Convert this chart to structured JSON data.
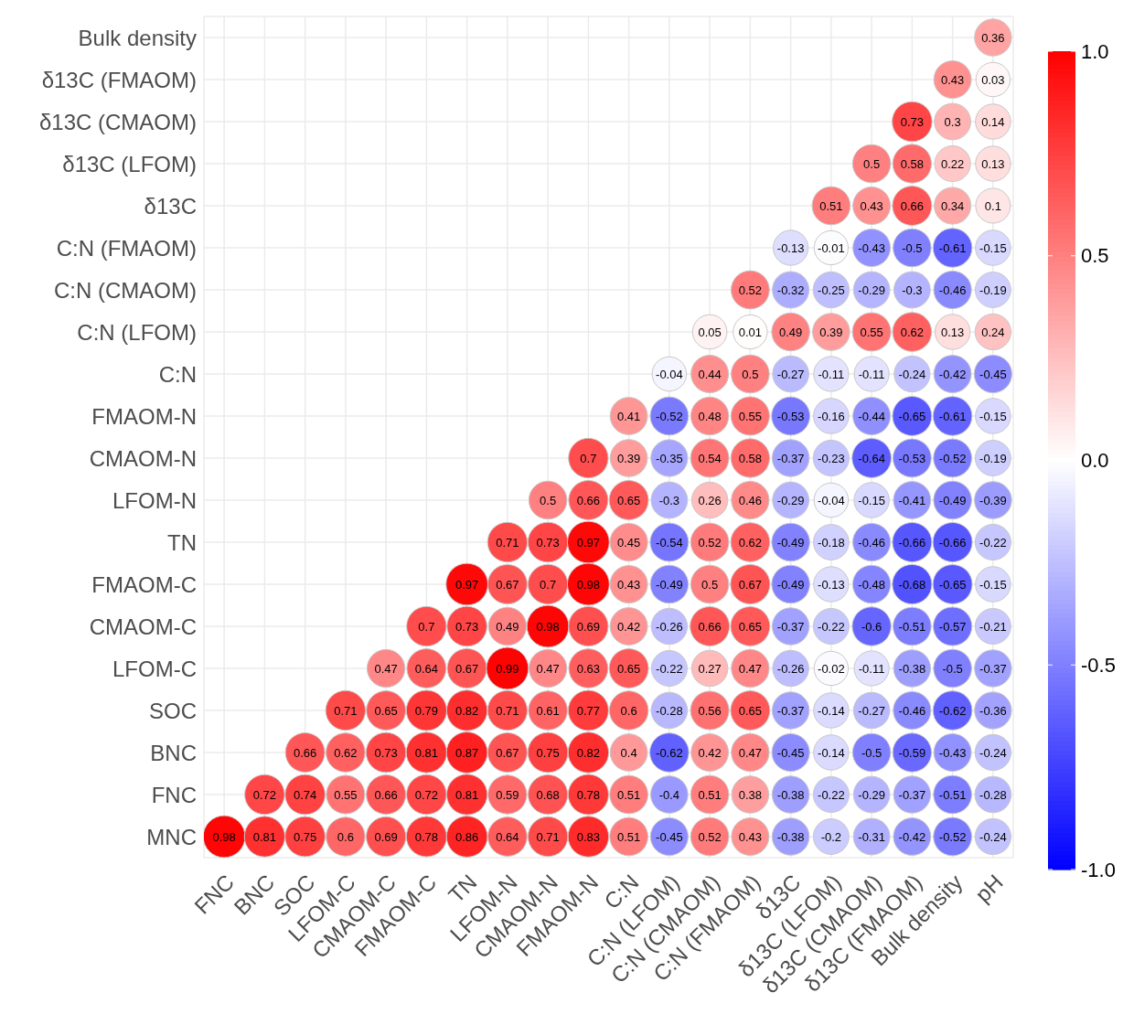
{
  "chart_data": {
    "type": "heatmap",
    "categories": [
      "FNC",
      "BNC",
      "SOC",
      "LFOM-C",
      "CMAOM-C",
      "FMAOM-C",
      "TN",
      "LFOM-N",
      "CMAOM-N",
      "FMAOM-N",
      "C:N",
      "C:N (LFOM)",
      "C:N (CMAOM)",
      "C:N (FMAOM)",
      "δ13C",
      "δ13C (LFOM)",
      "δ13C (CMAOM)",
      "δ13C (FMAOM)",
      "Bulk density",
      "pH"
    ],
    "y_categories": [
      "Bulk density",
      "δ13C (FMAOM)",
      "δ13C (CMAOM)",
      "δ13C (LFOM)",
      "δ13C",
      "C:N (FMAOM)",
      "C:N (CMAOM)",
      "C:N (LFOM)",
      "C:N",
      "FMAOM-N",
      "CMAOM-N",
      "LFOM-N",
      "TN",
      "FMAOM-C",
      "CMAOM-C",
      "LFOM-C",
      "SOC",
      "BNC",
      "FNC",
      "MNC"
    ],
    "cells": [
      [
        null,
        null,
        null,
        null,
        null,
        null,
        null,
        null,
        null,
        null,
        null,
        null,
        null,
        null,
        null,
        null,
        null,
        null,
        null,
        0.36
      ],
      [
        null,
        null,
        null,
        null,
        null,
        null,
        null,
        null,
        null,
        null,
        null,
        null,
        null,
        null,
        null,
        null,
        null,
        null,
        0.43,
        0.03
      ],
      [
        null,
        null,
        null,
        null,
        null,
        null,
        null,
        null,
        null,
        null,
        null,
        null,
        null,
        null,
        null,
        null,
        null,
        0.73,
        0.3,
        0.14
      ],
      [
        null,
        null,
        null,
        null,
        null,
        null,
        null,
        null,
        null,
        null,
        null,
        null,
        null,
        null,
        null,
        null,
        0.5,
        0.58,
        0.22,
        0.13
      ],
      [
        null,
        null,
        null,
        null,
        null,
        null,
        null,
        null,
        null,
        null,
        null,
        null,
        null,
        null,
        null,
        0.51,
        0.43,
        0.66,
        0.34,
        0.1
      ],
      [
        null,
        null,
        null,
        null,
        null,
        null,
        null,
        null,
        null,
        null,
        null,
        null,
        null,
        null,
        -0.13,
        -0.01,
        -0.43,
        -0.5,
        -0.61,
        -0.15
      ],
      [
        null,
        null,
        null,
        null,
        null,
        null,
        null,
        null,
        null,
        null,
        null,
        null,
        null,
        0.52,
        -0.32,
        -0.25,
        -0.29,
        -0.3,
        -0.46,
        -0.19
      ],
      [
        null,
        null,
        null,
        null,
        null,
        null,
        null,
        null,
        null,
        null,
        null,
        null,
        0.05,
        0.01,
        0.49,
        0.39,
        0.55,
        0.62,
        0.13,
        0.24
      ],
      [
        null,
        null,
        null,
        null,
        null,
        null,
        null,
        null,
        null,
        null,
        null,
        -0.04,
        0.44,
        0.5,
        -0.27,
        -0.11,
        -0.11,
        -0.24,
        -0.42,
        -0.45
      ],
      [
        null,
        null,
        null,
        null,
        null,
        null,
        null,
        null,
        null,
        null,
        0.41,
        -0.52,
        0.48,
        0.55,
        -0.53,
        -0.16,
        -0.44,
        -0.65,
        -0.61,
        -0.15
      ],
      [
        null,
        null,
        null,
        null,
        null,
        null,
        null,
        null,
        null,
        0.7,
        0.39,
        -0.35,
        0.54,
        0.58,
        -0.37,
        -0.23,
        -0.64,
        -0.53,
        -0.52,
        -0.19
      ],
      [
        null,
        null,
        null,
        null,
        null,
        null,
        null,
        null,
        0.5,
        0.66,
        0.65,
        -0.3,
        0.26,
        0.46,
        -0.29,
        -0.04,
        -0.15,
        -0.41,
        -0.49,
        -0.39
      ],
      [
        null,
        null,
        null,
        null,
        null,
        null,
        null,
        0.71,
        0.73,
        0.97,
        0.45,
        -0.54,
        0.52,
        0.62,
        -0.49,
        -0.18,
        -0.46,
        -0.66,
        -0.66,
        -0.22
      ],
      [
        null,
        null,
        null,
        null,
        null,
        null,
        0.97,
        0.67,
        0.7,
        0.98,
        0.43,
        -0.49,
        0.5,
        0.67,
        -0.49,
        -0.13,
        -0.48,
        -0.68,
        -0.65,
        -0.15
      ],
      [
        null,
        null,
        null,
        null,
        null,
        0.7,
        0.73,
        0.49,
        0.98,
        0.69,
        0.42,
        -0.26,
        0.66,
        0.65,
        -0.37,
        -0.22,
        -0.6,
        -0.51,
        -0.57,
        -0.21
      ],
      [
        null,
        null,
        null,
        null,
        0.47,
        0.64,
        0.67,
        0.99,
        0.47,
        0.63,
        0.65,
        -0.22,
        0.27,
        0.47,
        -0.26,
        -0.02,
        -0.11,
        -0.38,
        -0.5,
        -0.37
      ],
      [
        null,
        null,
        null,
        0.71,
        0.65,
        0.79,
        0.82,
        0.71,
        0.61,
        0.77,
        0.6,
        -0.28,
        0.56,
        0.65,
        -0.37,
        -0.14,
        -0.27,
        -0.46,
        -0.62,
        -0.36
      ],
      [
        null,
        null,
        0.66,
        0.62,
        0.73,
        0.81,
        0.87,
        0.67,
        0.75,
        0.82,
        0.4,
        -0.62,
        0.42,
        0.47,
        -0.45,
        -0.14,
        -0.5,
        -0.59,
        -0.43,
        -0.24
      ],
      [
        null,
        0.72,
        0.74,
        0.55,
        0.66,
        0.72,
        0.81,
        0.59,
        0.68,
        0.78,
        0.51,
        -0.4,
        0.51,
        0.38,
        -0.38,
        -0.22,
        -0.29,
        -0.37,
        -0.51,
        -0.28
      ],
      [
        0.98,
        0.81,
        0.75,
        0.6,
        0.69,
        0.78,
        0.86,
        0.64,
        0.71,
        0.83,
        0.51,
        -0.45,
        0.52,
        0.43,
        -0.38,
        -0.2,
        -0.31,
        -0.42,
        -0.52,
        -0.24
      ]
    ],
    "clim": [
      -1,
      1
    ],
    "cticks": [
      {
        "value": 1,
        "label": "1.0"
      },
      {
        "value": 0.5,
        "label": "0.5"
      },
      {
        "value": 0,
        "label": "0.0"
      },
      {
        "value": -0.5,
        "label": "-0.5"
      },
      {
        "value": -1,
        "label": "-1.0"
      }
    ],
    "data_labels": true,
    "grid": true
  }
}
